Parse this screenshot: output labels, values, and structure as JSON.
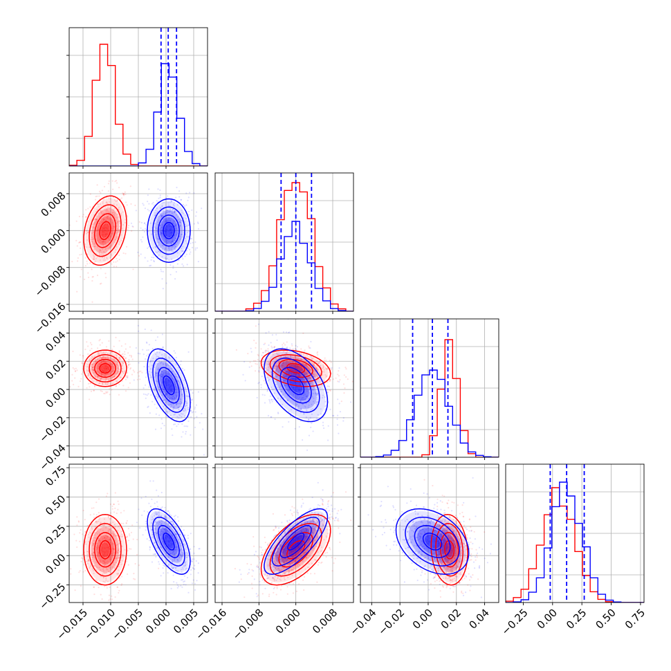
{
  "chart_data": {
    "type": "corner",
    "grid": true,
    "colors": {
      "a": "#ff0000",
      "b": "#0000ff"
    },
    "params": [
      {
        "range": [
          -0.0175,
          0.0075
        ],
        "ticks": [
          -0.015,
          -0.01,
          -0.005,
          0.0,
          0.005
        ],
        "tick_labels": [
          "−0.015",
          "−0.010",
          "−0.005",
          "0.000",
          "0.005"
        ]
      },
      {
        "range": [
          -0.0175,
          0.0125
        ],
        "ticks": [
          -0.016,
          -0.008,
          0.0,
          0.008
        ],
        "tick_labels": [
          "−0.016",
          "−0.008",
          "0.000",
          "0.008"
        ]
      },
      {
        "range": [
          -0.048,
          0.05
        ],
        "ticks": [
          -0.04,
          -0.02,
          0.0,
          0.02,
          0.04
        ],
        "tick_labels": [
          "−0.04",
          "−0.02",
          "0.00",
          "0.02",
          "0.04"
        ]
      },
      {
        "range": [
          -0.4,
          0.78
        ],
        "ticks": [
          -0.25,
          0.0,
          0.25,
          0.5,
          0.75
        ],
        "tick_labels": [
          "−0.25",
          "0.00",
          "0.25",
          "0.50",
          "0.75"
        ]
      }
    ],
    "series": [
      {
        "color": "#ff0000",
        "mean": [
          -0.011,
          0.0,
          0.015,
          0.05
        ],
        "std": [
          0.0018,
          0.0035,
          0.006,
          0.14
        ],
        "corr": [
          [
            1,
            0.25,
            0.0,
            0.0
          ],
          [
            0.25,
            1,
            -0.3,
            0.55
          ],
          [
            0.0,
            -0.3,
            1,
            -0.1
          ],
          [
            0.0,
            0.55,
            -0.1,
            1
          ]
        ],
        "hist_peak": [
          0.88,
          0.93,
          0.85,
          0.83
        ]
      },
      {
        "color": "#0000ff",
        "mean": [
          0.0005,
          0.0,
          0.003,
          0.12
        ],
        "std": [
          0.0018,
          0.0032,
          0.012,
          0.13
        ],
        "corr": [
          [
            1,
            0.0,
            -0.5,
            -0.6
          ],
          [
            0.0,
            1,
            -0.45,
            0.75
          ],
          [
            -0.5,
            -0.45,
            1,
            -0.35
          ],
          [
            -0.6,
            0.75,
            -0.35,
            1
          ]
        ],
        "hist_peak": [
          0.74,
          0.65,
          0.63,
          0.87
        ]
      }
    ],
    "quantiles_b": [
      [
        -0.0009,
        0.0004,
        0.0019
      ],
      [
        -0.0032,
        0.0,
        0.0034
      ],
      [
        -0.011,
        0.003,
        0.014
      ],
      [
        -0.02,
        0.12,
        0.27
      ]
    ]
  }
}
